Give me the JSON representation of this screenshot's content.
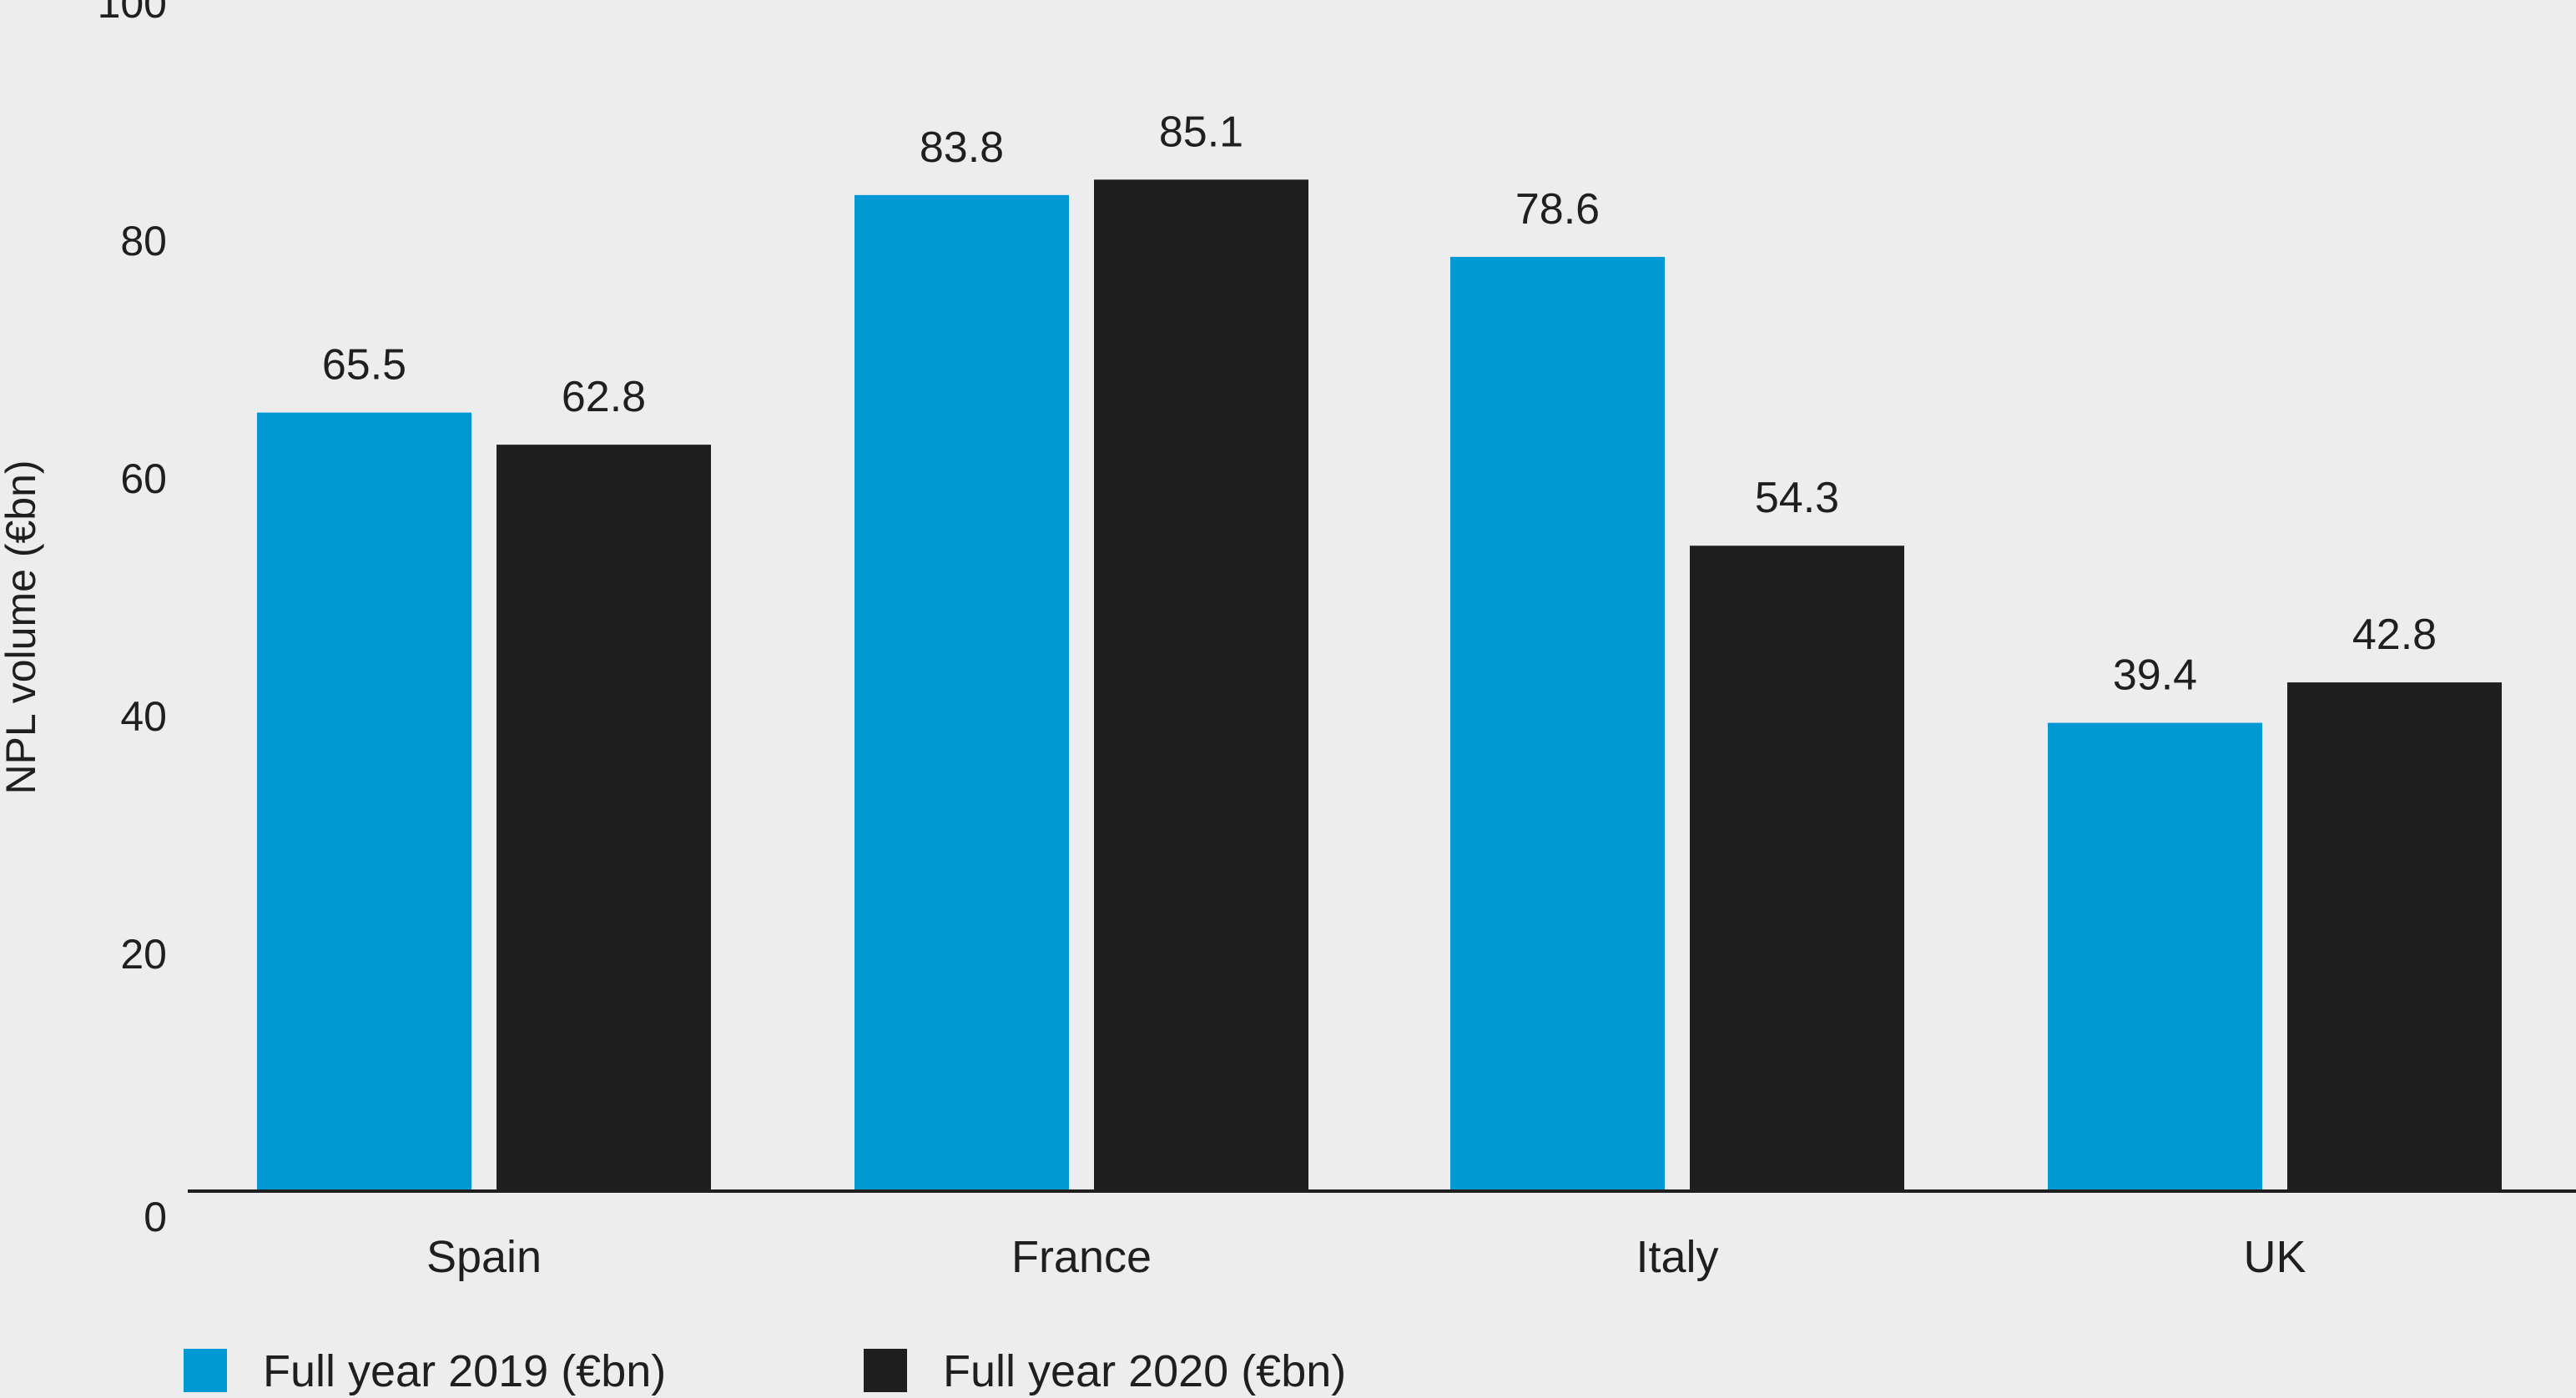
{
  "chart_data": {
    "type": "bar",
    "categories": [
      "Spain",
      "France",
      "Italy",
      "UK"
    ],
    "series": [
      {
        "name": "Full year 2019 (€bn)",
        "color": "#0099d3",
        "values": [
          65.5,
          83.8,
          78.6,
          39.4
        ]
      },
      {
        "name": "Full year 2020 (€bn)",
        "color": "#1f1f1f",
        "values": [
          62.8,
          85.1,
          54.3,
          42.8
        ]
      }
    ],
    "ylabel": "NPL volume (€bn)",
    "xlabel": "",
    "ylim": [
      0,
      100
    ],
    "yticks": [
      "0",
      "20",
      "40",
      "60",
      "80",
      "100"
    ],
    "grid": false,
    "legend_position": "bottom-left",
    "background": "#ededed"
  }
}
